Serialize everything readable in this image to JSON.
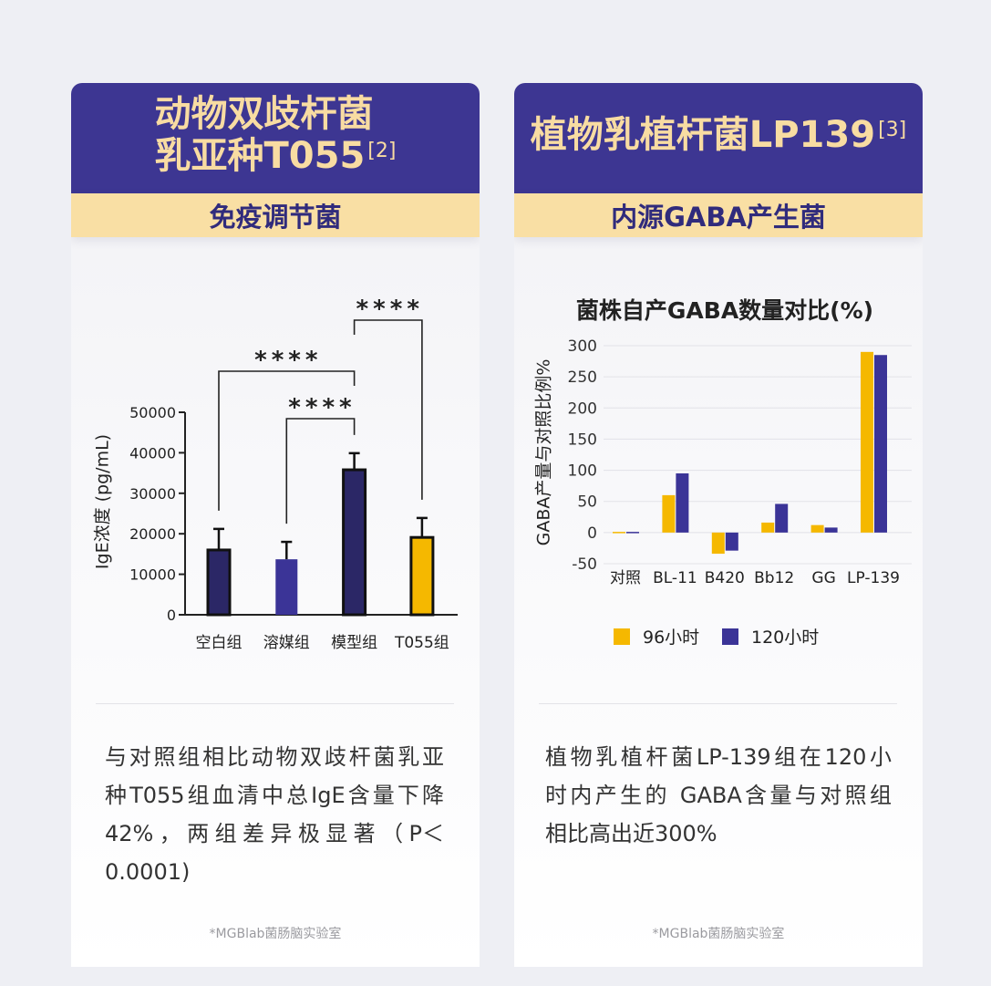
{
  "colors": {
    "background": "#eeeff4",
    "header_purple": "#3d3692",
    "title_cream": "#f8dca2",
    "band_yellow": "#f9dfa4",
    "band_text": "#302b7c",
    "series_yellow": "#f5b800",
    "series_purple": "#3b3497"
  },
  "cards": [
    {
      "title_lines": [
        "动物双歧杆菌",
        "乳亚种T055"
      ],
      "title_ref": "[2]",
      "subtitle": "免疫调节菌",
      "description_lines": [
        "与对照组相比动物双歧杆菌乳亚",
        "种T055组血清中总IgE含量下降",
        "42%，两组差异极显著（P＜",
        "0.0001)"
      ],
      "footer": "*MGBlab菌肠脑实验室"
    },
    {
      "title_lines": [
        "植物乳植杆菌LP139"
      ],
      "title_ref": "[3]",
      "subtitle": "内源GABA产生菌",
      "description_lines": [
        "植物乳植杆菌LP-139组在120小",
        "时内产生的 GABA含量与对照组",
        "相比高出近300%"
      ],
      "footer": "*MGBlab菌肠脑实验室"
    }
  ],
  "chart_data": [
    {
      "type": "bar",
      "ylabel": "IgE浓度 (pg/mL)",
      "categories": [
        "空白组",
        "溶媒组",
        "模型组",
        "T055组"
      ],
      "values": [
        16000,
        13700,
        35800,
        19100
      ],
      "errors": [
        5200,
        4300,
        4100,
        4800
      ],
      "ylim": [
        0,
        50000
      ],
      "yticks": [
        0,
        10000,
        20000,
        30000,
        40000,
        50000
      ],
      "bar_fills": [
        "#2b2766",
        "#3b3497",
        "#2b2766",
        "#f5b800"
      ],
      "bar_outlined": [
        true,
        false,
        true,
        true
      ],
      "significance": [
        {
          "pair": [
            0,
            2
          ],
          "label": "****"
        },
        {
          "pair": [
            1,
            2
          ],
          "label": "****"
        },
        {
          "pair": [
            2,
            3
          ],
          "label": "****"
        }
      ],
      "grid": false
    },
    {
      "type": "bar",
      "title": "菌株自产GABA数量对比(%)",
      "ylabel": "GABA产量与对照比例%",
      "categories": [
        "对照",
        "BL-11",
        "B420",
        "Bb12",
        "GG",
        "LP-139"
      ],
      "series": [
        {
          "name": "96小时",
          "color": "#f5b800",
          "values": [
            0,
            60,
            -34,
            16,
            12,
            290
          ]
        },
        {
          "name": "120小时",
          "color": "#3b3497",
          "values": [
            0,
            95,
            -29,
            46,
            8,
            285
          ]
        }
      ],
      "ylim": [
        -50,
        300
      ],
      "yticks": [
        -50,
        0,
        50,
        100,
        150,
        200,
        250,
        300
      ],
      "grid": true,
      "legend": "bottom"
    }
  ]
}
